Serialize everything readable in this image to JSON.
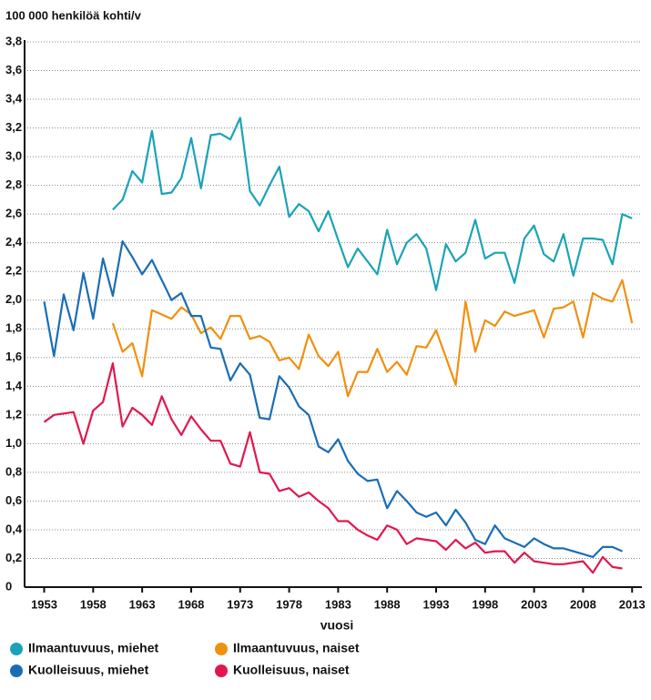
{
  "chart_data": {
    "type": "line",
    "y_label": "100 000 henkilöä kohti/v",
    "x_label": "vuosi",
    "x": [
      1953,
      1954,
      1955,
      1956,
      1957,
      1958,
      1959,
      1960,
      1961,
      1962,
      1963,
      1964,
      1965,
      1966,
      1967,
      1968,
      1969,
      1970,
      1971,
      1972,
      1973,
      1974,
      1975,
      1976,
      1977,
      1978,
      1979,
      1980,
      1981,
      1982,
      1983,
      1984,
      1985,
      1986,
      1987,
      1988,
      1989,
      1990,
      1991,
      1992,
      1993,
      1994,
      1995,
      1996,
      1997,
      1998,
      1999,
      2000,
      2001,
      2002,
      2003,
      2004,
      2005,
      2006,
      2007,
      2008,
      2009,
      2010,
      2011,
      2012,
      2013
    ],
    "series": [
      {
        "name": "Ilmaantuvuus, miehet",
        "color": "#1aa3b8",
        "values": [
          null,
          null,
          null,
          null,
          null,
          null,
          null,
          2.63,
          2.7,
          2.9,
          2.82,
          3.18,
          2.74,
          2.75,
          2.85,
          3.13,
          2.78,
          3.15,
          3.16,
          3.12,
          3.27,
          2.76,
          2.66,
          2.8,
          2.93,
          2.58,
          2.67,
          2.62,
          2.48,
          2.62,
          2.42,
          2.23,
          2.36,
          2.27,
          2.18,
          2.49,
          2.25,
          2.4,
          2.46,
          2.36,
          2.07,
          2.39,
          2.27,
          2.33,
          2.56,
          2.29,
          2.33,
          2.33,
          2.12,
          2.43,
          2.52,
          2.32,
          2.27,
          2.46,
          2.17,
          2.43,
          2.43,
          2.42,
          2.25,
          2.6,
          2.57
        ]
      },
      {
        "name": "Ilmaantuvuus, naiset",
        "color": "#f0900f",
        "values": [
          null,
          null,
          null,
          null,
          null,
          null,
          null,
          1.84,
          1.64,
          1.7,
          1.47,
          1.93,
          1.9,
          1.87,
          1.95,
          1.9,
          1.77,
          1.81,
          1.73,
          1.89,
          1.89,
          1.73,
          1.75,
          1.71,
          1.58,
          1.6,
          1.52,
          1.76,
          1.61,
          1.54,
          1.64,
          1.33,
          1.5,
          1.5,
          1.66,
          1.5,
          1.57,
          1.48,
          1.68,
          1.67,
          1.79,
          1.6,
          1.41,
          1.99,
          1.64,
          1.86,
          1.82,
          1.92,
          1.89,
          1.91,
          1.93,
          1.74,
          1.94,
          1.95,
          1.99,
          1.74,
          2.05,
          2.01,
          1.99,
          2.14,
          1.84
        ]
      },
      {
        "name": "Kuolleisuus, miehet",
        "color": "#1a6db5",
        "values": [
          1.99,
          1.61,
          2.04,
          1.79,
          2.19,
          1.87,
          2.29,
          2.03,
          2.41,
          2.3,
          2.18,
          2.28,
          2.14,
          2.0,
          2.05,
          1.89,
          1.89,
          1.67,
          1.66,
          1.44,
          1.56,
          1.48,
          1.18,
          1.17,
          1.47,
          1.39,
          1.26,
          1.2,
          0.98,
          0.94,
          1.03,
          0.88,
          0.79,
          0.74,
          0.75,
          0.55,
          0.67,
          0.6,
          0.52,
          0.49,
          0.52,
          0.43,
          0.54,
          0.45,
          0.33,
          0.3,
          0.43,
          0.34,
          0.31,
          0.28,
          0.34,
          0.3,
          0.27,
          0.27,
          0.25,
          0.23,
          0.21,
          0.28,
          0.28,
          0.25,
          null
        ]
      },
      {
        "name": "Kuolleisuus, naiset",
        "color": "#e0184f",
        "values": [
          1.15,
          1.2,
          1.21,
          1.22,
          1.0,
          1.23,
          1.29,
          1.56,
          1.12,
          1.25,
          1.2,
          1.13,
          1.33,
          1.17,
          1.06,
          1.19,
          1.1,
          1.02,
          1.02,
          0.86,
          0.84,
          1.08,
          0.8,
          0.79,
          0.67,
          0.69,
          0.63,
          0.66,
          0.6,
          0.55,
          0.46,
          0.46,
          0.4,
          0.36,
          0.33,
          0.43,
          0.4,
          0.3,
          0.34,
          0.33,
          0.32,
          0.26,
          0.33,
          0.27,
          0.31,
          0.24,
          0.25,
          0.25,
          0.17,
          0.24,
          0.18,
          0.17,
          0.16,
          0.16,
          0.17,
          0.18,
          0.1,
          0.21,
          0.14,
          0.13,
          null
        ]
      }
    ],
    "xlim": [
      1951,
      2014
    ],
    "xticks": [
      1953,
      1958,
      1963,
      1968,
      1973,
      1978,
      1983,
      1988,
      1993,
      1998,
      2003,
      2008,
      2013
    ],
    "ylim": [
      0,
      3.8
    ],
    "yticks": [
      0,
      {
        "value": 0.2,
        "label": "0,2"
      },
      {
        "value": 0.4,
        "label": "0,4"
      },
      {
        "value": 0.6,
        "label": "0,6"
      },
      {
        "value": 0.8,
        "label": "0,8"
      },
      {
        "value": 1.0,
        "label": "1,0"
      },
      {
        "value": 1.2,
        "label": "1,2"
      },
      {
        "value": 1.4,
        "label": "1,4"
      },
      {
        "value": 1.6,
        "label": "1,6"
      },
      {
        "value": 1.8,
        "label": "1,8"
      },
      {
        "value": 2.0,
        "label": "2,0"
      },
      {
        "value": 2.2,
        "label": "2,2"
      },
      {
        "value": 2.4,
        "label": "2,4"
      },
      {
        "value": 2.6,
        "label": "2,6"
      },
      {
        "value": 2.8,
        "label": "2,8"
      },
      {
        "value": 3.0,
        "label": "3,0"
      },
      {
        "value": 3.2,
        "label": "3,2"
      },
      {
        "value": 3.4,
        "label": "3,4"
      },
      {
        "value": 3.6,
        "label": "3,6"
      },
      {
        "value": 3.8,
        "label": "3,8"
      }
    ],
    "grid": true
  }
}
